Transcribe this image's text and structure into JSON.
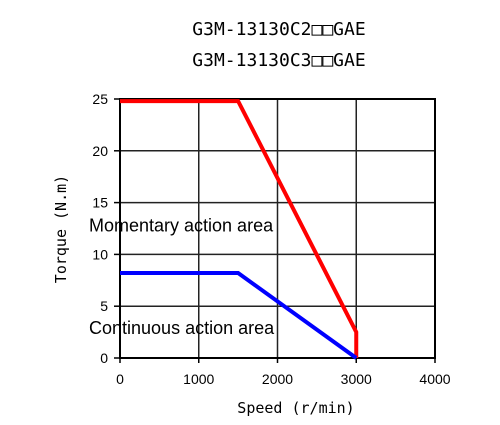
{
  "chart_data": {
    "type": "line",
    "title_lines": [
      "G3M-13130C2□□GAE",
      "G3M-13130C3□□GAE"
    ],
    "xlabel": "Speed (r/min)",
    "ylabel": "Torque (N.m)",
    "xlim": [
      0,
      4000
    ],
    "ylim": [
      0,
      25
    ],
    "x_ticks": [
      0,
      1000,
      2000,
      3000,
      4000
    ],
    "y_ticks": [
      0,
      5,
      10,
      15,
      20,
      25
    ],
    "grid": true,
    "legend": "none",
    "series": [
      {
        "color": "#ff0000",
        "points": [
          [
            0,
            24.8
          ],
          [
            1500,
            24.8
          ],
          [
            3000,
            2.5
          ],
          [
            3000,
            0
          ]
        ]
      },
      {
        "color": "#0000ff",
        "points": [
          [
            0,
            8.2
          ],
          [
            1500,
            8.2
          ],
          [
            3000,
            0
          ]
        ]
      }
    ],
    "annotations": [
      {
        "text": "Momentary action area",
        "x": 0,
        "y": 12.2
      },
      {
        "text": "Continuous action area",
        "x": 0,
        "y": 2.3
      }
    ]
  }
}
